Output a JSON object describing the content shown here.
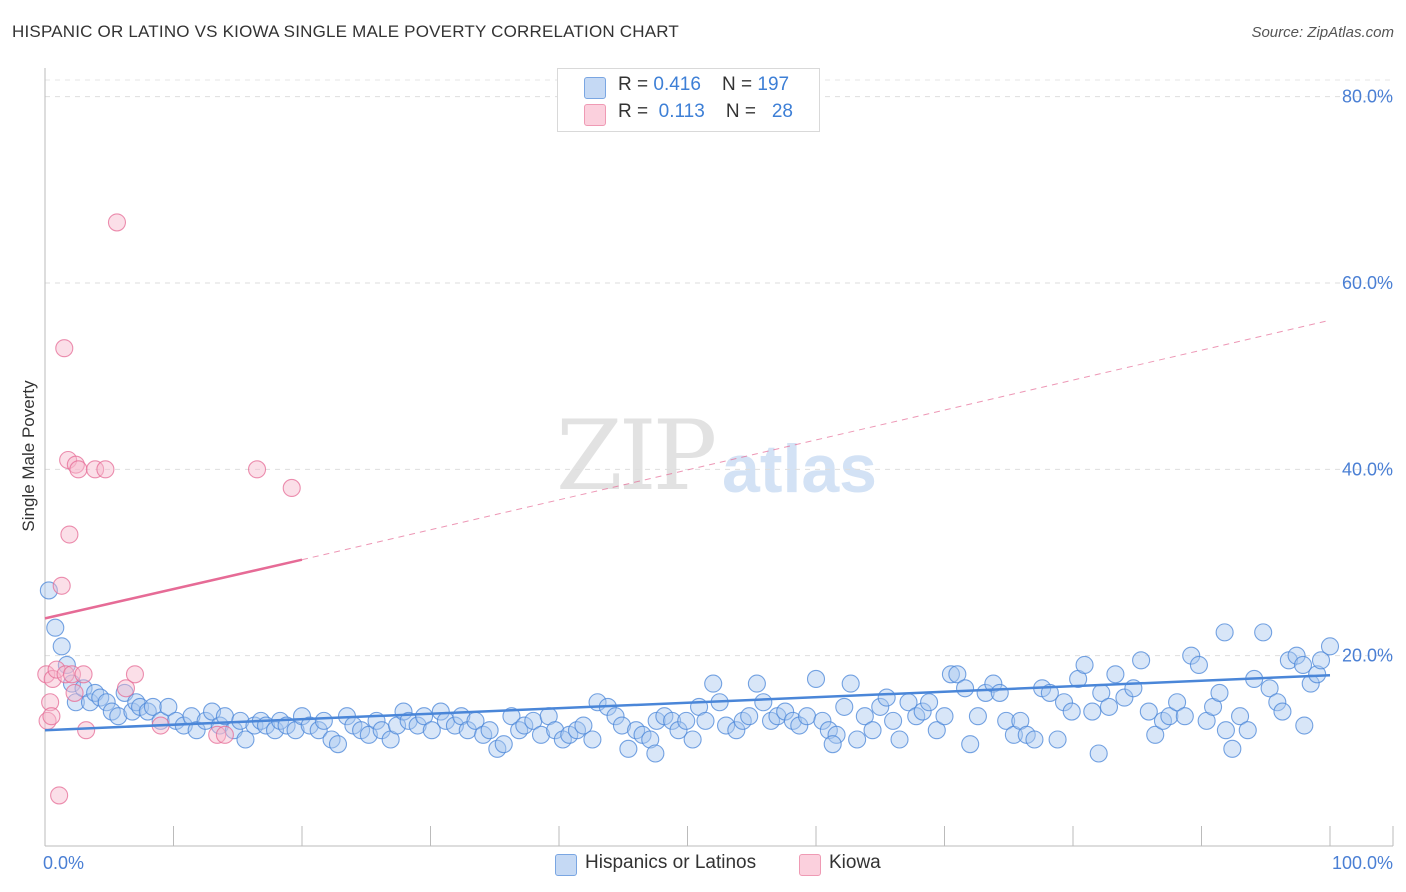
{
  "header": {
    "title": "HISPANIC OR LATINO VS KIOWA SINGLE MALE POVERTY CORRELATION CHART",
    "source": "Source: ZipAtlas.com"
  },
  "watermark": {
    "zip": "ZIP",
    "atlas": "atlas"
  },
  "legend": {
    "rows": [
      {
        "r_label": "R = ",
        "r_value": "0.416",
        "n_label": "N = ",
        "n_value": "197",
        "color": "#a9c8f0"
      },
      {
        "r_label": "R = ",
        "r_value": "0.113",
        "n_label": "N = ",
        "n_value": "28",
        "color": "#f7b8cb"
      }
    ]
  },
  "bottom_legend": [
    {
      "label": "Hispanics or Latinos",
      "color": "#a9c8f0"
    },
    {
      "label": "Kiowa",
      "color": "#f7b8cb"
    }
  ],
  "chart_data": {
    "type": "scatter",
    "title": "HISPANIC OR LATINO VS KIOWA SINGLE MALE POVERTY CORRELATION CHART",
    "xlabel": "",
    "ylabel": "Single Male Poverty",
    "xlim": [
      0,
      100
    ],
    "ylim": [
      0,
      82
    ],
    "y_ticks": [
      {
        "value": 20,
        "label": "20.0%"
      },
      {
        "value": 40,
        "label": "40.0%"
      },
      {
        "value": 60,
        "label": "60.0%"
      },
      {
        "value": 80,
        "label": "80.0%"
      }
    ],
    "x_tick_labels": [
      {
        "value": 0,
        "label": "0.0%"
      },
      {
        "value": 100,
        "label": "100.0%"
      }
    ],
    "x_minor_ticks": [
      10,
      20,
      30,
      40,
      50,
      60,
      70,
      80,
      90,
      100
    ],
    "grid": true,
    "legend_position": "top-center",
    "series": [
      {
        "name": "Hispanics or Latinos",
        "color": "#4a86d8",
        "fill": "#a9c8f0",
        "trend": {
          "x": [
            0,
            100
          ],
          "y": [
            12.0,
            17.9
          ],
          "style": "solid"
        },
        "points": [
          [
            0.3,
            27.0
          ],
          [
            0.8,
            23.0
          ],
          [
            1.3,
            21.0
          ],
          [
            1.7,
            19.0
          ],
          [
            2.1,
            17.0
          ],
          [
            2.4,
            15.0
          ],
          [
            3.0,
            16.5
          ],
          [
            3.5,
            15.0
          ],
          [
            3.9,
            16.0
          ],
          [
            4.3,
            15.5
          ],
          [
            4.8,
            15.0
          ],
          [
            5.2,
            14.0
          ],
          [
            5.7,
            13.5
          ],
          [
            6.2,
            16.0
          ],
          [
            6.8,
            14.0
          ],
          [
            7.1,
            15.0
          ],
          [
            7.4,
            14.5
          ],
          [
            8.0,
            14.0
          ],
          [
            8.4,
            14.5
          ],
          [
            9.0,
            13.0
          ],
          [
            9.6,
            14.5
          ],
          [
            10.2,
            13.0
          ],
          [
            10.8,
            12.5
          ],
          [
            11.4,
            13.5
          ],
          [
            11.8,
            12.0
          ],
          [
            12.5,
            13.0
          ],
          [
            13.0,
            14.0
          ],
          [
            13.6,
            12.5
          ],
          [
            14.0,
            13.5
          ],
          [
            14.7,
            12.0
          ],
          [
            15.2,
            13.0
          ],
          [
            15.6,
            11.0
          ],
          [
            16.3,
            12.5
          ],
          [
            16.8,
            13.0
          ],
          [
            17.2,
            12.5
          ],
          [
            17.9,
            12.0
          ],
          [
            18.3,
            13.0
          ],
          [
            18.8,
            12.5
          ],
          [
            19.5,
            12.0
          ],
          [
            20.0,
            13.5
          ],
          [
            20.6,
            12.5
          ],
          [
            21.3,
            12.0
          ],
          [
            21.7,
            13.0
          ],
          [
            22.3,
            11.0
          ],
          [
            22.8,
            10.5
          ],
          [
            23.5,
            13.5
          ],
          [
            24.0,
            12.5
          ],
          [
            24.6,
            12.0
          ],
          [
            25.2,
            11.5
          ],
          [
            25.8,
            13.0
          ],
          [
            26.2,
            12.0
          ],
          [
            26.9,
            11.0
          ],
          [
            27.4,
            12.5
          ],
          [
            27.9,
            14.0
          ],
          [
            28.3,
            13.0
          ],
          [
            29.0,
            12.5
          ],
          [
            29.5,
            13.5
          ],
          [
            30.1,
            12.0
          ],
          [
            30.8,
            14.0
          ],
          [
            31.2,
            13.0
          ],
          [
            31.9,
            12.5
          ],
          [
            32.4,
            13.5
          ],
          [
            32.9,
            12.0
          ],
          [
            33.5,
            13.0
          ],
          [
            34.1,
            11.5
          ],
          [
            34.6,
            12.0
          ],
          [
            35.2,
            10.0
          ],
          [
            35.7,
            10.5
          ],
          [
            36.3,
            13.5
          ],
          [
            36.9,
            12.0
          ],
          [
            37.3,
            12.5
          ],
          [
            38.0,
            13.0
          ],
          [
            38.6,
            11.5
          ],
          [
            39.2,
            13.5
          ],
          [
            39.7,
            12.0
          ],
          [
            40.3,
            11.0
          ],
          [
            40.8,
            11.5
          ],
          [
            41.4,
            12.0
          ],
          [
            41.9,
            12.5
          ],
          [
            42.6,
            11.0
          ],
          [
            43.0,
            15.0
          ],
          [
            43.8,
            14.5
          ],
          [
            44.4,
            13.5
          ],
          [
            44.9,
            12.5
          ],
          [
            45.4,
            10.0
          ],
          [
            46.0,
            12.0
          ],
          [
            46.5,
            11.5
          ],
          [
            47.1,
            11.0
          ],
          [
            47.6,
            13.0
          ],
          [
            48.2,
            13.5
          ],
          [
            48.8,
            13.0
          ],
          [
            49.3,
            12.0
          ],
          [
            49.9,
            13.0
          ],
          [
            50.4,
            11.0
          ],
          [
            50.9,
            14.5
          ],
          [
            51.4,
            13.0
          ],
          [
            52.0,
            17.0
          ],
          [
            52.5,
            15.0
          ],
          [
            53.0,
            12.5
          ],
          [
            53.8,
            12.0
          ],
          [
            54.3,
            13.0
          ],
          [
            54.8,
            13.5
          ],
          [
            55.4,
            17.0
          ],
          [
            55.9,
            15.0
          ],
          [
            56.5,
            13.0
          ],
          [
            57.0,
            13.5
          ],
          [
            57.6,
            14.0
          ],
          [
            58.2,
            13.0
          ],
          [
            58.7,
            12.5
          ],
          [
            59.3,
            13.5
          ],
          [
            60.0,
            17.5
          ],
          [
            60.5,
            13.0
          ],
          [
            61.0,
            12.0
          ],
          [
            61.6,
            11.5
          ],
          [
            62.2,
            14.5
          ],
          [
            62.7,
            17.0
          ],
          [
            63.2,
            11.0
          ],
          [
            63.8,
            13.5
          ],
          [
            64.4,
            12.0
          ],
          [
            65.0,
            14.5
          ],
          [
            65.5,
            15.5
          ],
          [
            66.0,
            13.0
          ],
          [
            66.5,
            11.0
          ],
          [
            67.2,
            15.0
          ],
          [
            67.8,
            13.5
          ],
          [
            68.3,
            14.0
          ],
          [
            68.8,
            15.0
          ],
          [
            69.4,
            12.0
          ],
          [
            70.0,
            13.5
          ],
          [
            70.5,
            18.0
          ],
          [
            71.0,
            18.0
          ],
          [
            71.6,
            16.5
          ],
          [
            72.0,
            10.5
          ],
          [
            72.6,
            13.5
          ],
          [
            73.2,
            16.0
          ],
          [
            73.8,
            17.0
          ],
          [
            74.3,
            16.0
          ],
          [
            74.8,
            13.0
          ],
          [
            75.4,
            11.5
          ],
          [
            75.9,
            13.0
          ],
          [
            76.4,
            11.5
          ],
          [
            77.0,
            11.0
          ],
          [
            77.6,
            16.5
          ],
          [
            78.2,
            16.0
          ],
          [
            78.8,
            11.0
          ],
          [
            79.3,
            15.0
          ],
          [
            79.9,
            14.0
          ],
          [
            80.4,
            17.5
          ],
          [
            80.9,
            19.0
          ],
          [
            81.5,
            14.0
          ],
          [
            82.2,
            16.0
          ],
          [
            82.8,
            14.5
          ],
          [
            83.3,
            18.0
          ],
          [
            84.0,
            15.5
          ],
          [
            84.7,
            16.5
          ],
          [
            85.3,
            19.5
          ],
          [
            85.9,
            14.0
          ],
          [
            86.4,
            11.5
          ],
          [
            87.0,
            13.0
          ],
          [
            87.5,
            13.5
          ],
          [
            88.1,
            15.0
          ],
          [
            88.7,
            13.5
          ],
          [
            89.2,
            20.0
          ],
          [
            89.8,
            19.0
          ],
          [
            90.4,
            13.0
          ],
          [
            90.9,
            14.5
          ],
          [
            91.4,
            16.0
          ],
          [
            91.9,
            12.0
          ],
          [
            92.4,
            10.0
          ],
          [
            93.0,
            13.5
          ],
          [
            93.6,
            12.0
          ],
          [
            94.1,
            17.5
          ],
          [
            94.8,
            22.5
          ],
          [
            95.3,
            16.5
          ],
          [
            95.9,
            15.0
          ],
          [
            96.3,
            14.0
          ],
          [
            96.8,
            19.5
          ],
          [
            97.4,
            20.0
          ],
          [
            97.9,
            19.0
          ],
          [
            98.5,
            17.0
          ],
          [
            99.0,
            18.0
          ],
          [
            99.3,
            19.5
          ],
          [
            100.0,
            21.0
          ],
          [
            98.0,
            12.5
          ],
          [
            91.8,
            22.5
          ],
          [
            82.0,
            9.5
          ],
          [
            61.3,
            10.5
          ],
          [
            47.5,
            9.5
          ]
        ]
      },
      {
        "name": "Kiowa",
        "color": "#e66b96",
        "fill": "#f7b8cb",
        "trend": {
          "x": [
            0,
            20
          ],
          "y": [
            24.0,
            30.3
          ],
          "style": "solid",
          "extended": {
            "x": [
              20,
              100
            ],
            "y": [
              30.3,
              56.0
            ],
            "style": "dashed"
          }
        },
        "points": [
          [
            0.1,
            18.0
          ],
          [
            0.2,
            13.0
          ],
          [
            0.4,
            15.0
          ],
          [
            0.6,
            17.5
          ],
          [
            0.9,
            18.5
          ],
          [
            1.1,
            5.0
          ],
          [
            1.3,
            27.5
          ],
          [
            1.5,
            53.0
          ],
          [
            1.6,
            18.0
          ],
          [
            1.8,
            41.0
          ],
          [
            1.9,
            33.0
          ],
          [
            2.1,
            18.0
          ],
          [
            2.3,
            16.0
          ],
          [
            2.4,
            40.5
          ],
          [
            2.6,
            40.0
          ],
          [
            3.0,
            18.0
          ],
          [
            3.2,
            12.0
          ],
          [
            3.9,
            40.0
          ],
          [
            4.7,
            40.0
          ],
          [
            5.6,
            66.5
          ],
          [
            6.3,
            16.5
          ],
          [
            7.0,
            18.0
          ],
          [
            9.0,
            12.5
          ],
          [
            13.4,
            11.5
          ],
          [
            14.0,
            11.5
          ],
          [
            16.5,
            40.0
          ],
          [
            19.2,
            38.0
          ],
          [
            0.5,
            13.5
          ]
        ]
      }
    ]
  }
}
